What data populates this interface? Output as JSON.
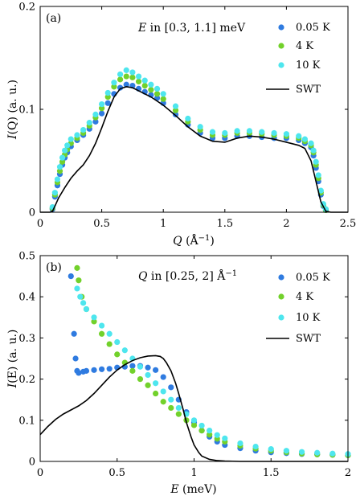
{
  "colors": {
    "s005": "#2f7be0",
    "s4": "#72d12b",
    "s10": "#4ee6ee",
    "swt": "#000000"
  },
  "chart_data": [
    {
      "type": "scatter",
      "panel_label": "(a)",
      "annotation": {
        "var": "E",
        "text": " in [0.3, 1.1] meV"
      },
      "xlabel": {
        "var": "Q",
        "unit": "(Å",
        "sup": "−1",
        "close": ")"
      },
      "ylabel": {
        "var": "I",
        "arg": "(Q)",
        "unit": " (a. u.)"
      },
      "xlim": [
        0,
        2.5
      ],
      "ylim": [
        0,
        0.2
      ],
      "xticks": [
        "0",
        "0.5",
        "1",
        "1.5",
        "2",
        "2.5"
      ],
      "xtick_values": [
        0,
        0.5,
        1,
        1.5,
        2,
        2.5
      ],
      "yticks": [
        "0",
        "0.1",
        "0.2"
      ],
      "ytick_values": [
        0,
        0.1,
        0.2
      ],
      "legend_position": "top-right",
      "series": [
        {
          "name": "0.05 K",
          "kind": "points",
          "color_key": "s005",
          "x": [
            0.1,
            0.12,
            0.14,
            0.16,
            0.18,
            0.2,
            0.22,
            0.25,
            0.3,
            0.35,
            0.4,
            0.45,
            0.5,
            0.55,
            0.6,
            0.65,
            0.7,
            0.75,
            0.8,
            0.85,
            0.9,
            0.95,
            1.0,
            1.1,
            1.2,
            1.3,
            1.4,
            1.5,
            1.6,
            1.7,
            1.8,
            1.9,
            2.0,
            2.1,
            2.15,
            2.2,
            2.22,
            2.24,
            2.26,
            2.28,
            2.3,
            2.32
          ],
          "y": [
            0.003,
            0.015,
            0.026,
            0.037,
            0.046,
            0.053,
            0.058,
            0.064,
            0.07,
            0.075,
            0.081,
            0.088,
            0.096,
            0.106,
            0.115,
            0.121,
            0.124,
            0.123,
            0.12,
            0.117,
            0.114,
            0.111,
            0.106,
            0.095,
            0.085,
            0.077,
            0.072,
            0.072,
            0.074,
            0.074,
            0.073,
            0.072,
            0.072,
            0.07,
            0.067,
            0.063,
            0.055,
            0.043,
            0.03,
            0.017,
            0.006,
            0.002
          ]
        },
        {
          "name": "4 K",
          "kind": "points",
          "color_key": "s4",
          "x": [
            0.1,
            0.12,
            0.14,
            0.16,
            0.18,
            0.2,
            0.22,
            0.25,
            0.3,
            0.35,
            0.4,
            0.45,
            0.5,
            0.55,
            0.6,
            0.65,
            0.7,
            0.75,
            0.8,
            0.85,
            0.9,
            0.95,
            1.0,
            1.1,
            1.2,
            1.3,
            1.4,
            1.5,
            1.6,
            1.7,
            1.8,
            1.9,
            2.0,
            2.1,
            2.15,
            2.2,
            2.22,
            2.24,
            2.26,
            2.28,
            2.3,
            2.32
          ],
          "y": [
            0.004,
            0.017,
            0.029,
            0.04,
            0.049,
            0.056,
            0.061,
            0.067,
            0.072,
            0.077,
            0.084,
            0.092,
            0.101,
            0.112,
            0.122,
            0.129,
            0.132,
            0.131,
            0.127,
            0.123,
            0.119,
            0.115,
            0.11,
            0.099,
            0.088,
            0.08,
            0.075,
            0.075,
            0.077,
            0.077,
            0.076,
            0.075,
            0.074,
            0.072,
            0.069,
            0.065,
            0.058,
            0.046,
            0.033,
            0.019,
            0.007,
            0.002
          ]
        },
        {
          "name": "10 K",
          "kind": "points",
          "color_key": "s10",
          "x": [
            0.1,
            0.12,
            0.14,
            0.16,
            0.18,
            0.2,
            0.22,
            0.25,
            0.3,
            0.35,
            0.4,
            0.45,
            0.5,
            0.55,
            0.6,
            0.65,
            0.7,
            0.75,
            0.8,
            0.85,
            0.9,
            0.95,
            1.0,
            1.1,
            1.2,
            1.3,
            1.4,
            1.5,
            1.6,
            1.7,
            1.8,
            1.9,
            2.0,
            2.1,
            2.15,
            2.2,
            2.22,
            2.24,
            2.26,
            2.28,
            2.3,
            2.32
          ],
          "y": [
            0.005,
            0.019,
            0.032,
            0.044,
            0.053,
            0.06,
            0.065,
            0.071,
            0.075,
            0.08,
            0.087,
            0.095,
            0.105,
            0.116,
            0.126,
            0.134,
            0.138,
            0.136,
            0.132,
            0.128,
            0.124,
            0.12,
            0.115,
            0.103,
            0.091,
            0.083,
            0.078,
            0.077,
            0.079,
            0.079,
            0.078,
            0.077,
            0.076,
            0.074,
            0.071,
            0.067,
            0.06,
            0.049,
            0.036,
            0.021,
            0.008,
            0.003
          ]
        },
        {
          "name": "SWT",
          "kind": "line",
          "color_key": "swt",
          "x": [
            0,
            0.08,
            0.1,
            0.12,
            0.15,
            0.2,
            0.25,
            0.3,
            0.35,
            0.4,
            0.45,
            0.5,
            0.55,
            0.6,
            0.65,
            0.7,
            0.75,
            0.8,
            0.85,
            0.9,
            0.95,
            1.0,
            1.1,
            1.2,
            1.3,
            1.4,
            1.5,
            1.6,
            1.7,
            1.8,
            1.9,
            2.0,
            2.1,
            2.15,
            2.2,
            2.24,
            2.28,
            2.32,
            2.36,
            2.5
          ],
          "y": [
            0,
            0,
            0.001,
            0.006,
            0.014,
            0.024,
            0.033,
            0.04,
            0.046,
            0.055,
            0.067,
            0.082,
            0.098,
            0.112,
            0.12,
            0.122,
            0.121,
            0.118,
            0.115,
            0.112,
            0.108,
            0.104,
            0.094,
            0.083,
            0.074,
            0.069,
            0.068,
            0.072,
            0.074,
            0.073,
            0.071,
            0.068,
            0.065,
            0.062,
            0.05,
            0.03,
            0.01,
            0.001,
            0,
            0
          ]
        }
      ]
    },
    {
      "type": "scatter",
      "panel_label": "(b)",
      "annotation": {
        "var": "Q",
        "text": " in [0.25, 2] Å",
        "sup": "−1"
      },
      "xlabel": {
        "var": "E",
        "unit": " (meV)"
      },
      "ylabel": {
        "var": "I",
        "arg": "(E)",
        "unit": " (a. u.)"
      },
      "xlim": [
        0,
        2
      ],
      "ylim": [
        0,
        0.5
      ],
      "xticks": [
        "0",
        "0.5",
        "1",
        "1.5",
        "2"
      ],
      "xtick_values": [
        0,
        0.5,
        1,
        1.5,
        2
      ],
      "yticks": [
        "0",
        "0.1",
        "0.2",
        "0.3",
        "0.4",
        "0.5"
      ],
      "ytick_values": [
        0,
        0.1,
        0.2,
        0.3,
        0.4,
        0.5
      ],
      "legend_position": "top-right",
      "series": [
        {
          "name": "0.05 K",
          "kind": "points",
          "color_key": "s005",
          "x": [
            0.2,
            0.22,
            0.23,
            0.24,
            0.25,
            0.28,
            0.3,
            0.35,
            0.4,
            0.45,
            0.5,
            0.55,
            0.6,
            0.65,
            0.7,
            0.75,
            0.8,
            0.85,
            0.9,
            0.95,
            1.0,
            1.05,
            1.1,
            1.15,
            1.2,
            1.3,
            1.4,
            1.5,
            1.6,
            1.7,
            1.8,
            1.9,
            2.0
          ],
          "y": [
            0.45,
            0.31,
            0.25,
            0.22,
            0.215,
            0.218,
            0.22,
            0.222,
            0.224,
            0.225,
            0.228,
            0.23,
            0.232,
            0.232,
            0.228,
            0.222,
            0.205,
            0.18,
            0.15,
            0.12,
            0.095,
            0.075,
            0.06,
            0.048,
            0.04,
            0.032,
            0.026,
            0.022,
            0.02,
            0.018,
            0.017,
            0.016,
            0.015
          ]
        },
        {
          "name": "4 K",
          "kind": "points",
          "color_key": "s4",
          "x": [
            0.24,
            0.25,
            0.27,
            0.3,
            0.35,
            0.4,
            0.45,
            0.5,
            0.55,
            0.6,
            0.65,
            0.7,
            0.75,
            0.8,
            0.85,
            0.9,
            0.95,
            1.0,
            1.05,
            1.1,
            1.15,
            1.2,
            1.3,
            1.4,
            1.5,
            1.6,
            1.7,
            1.8,
            1.9,
            2.0
          ],
          "y": [
            0.47,
            0.44,
            0.4,
            0.37,
            0.34,
            0.31,
            0.285,
            0.26,
            0.24,
            0.22,
            0.2,
            0.185,
            0.165,
            0.145,
            0.13,
            0.115,
            0.1,
            0.088,
            0.075,
            0.065,
            0.055,
            0.048,
            0.038,
            0.031,
            0.026,
            0.022,
            0.019,
            0.017,
            0.016,
            0.015
          ]
        },
        {
          "name": "10 K",
          "kind": "points",
          "color_key": "s10",
          "x": [
            0.24,
            0.26,
            0.28,
            0.3,
            0.35,
            0.4,
            0.45,
            0.5,
            0.55,
            0.6,
            0.65,
            0.7,
            0.75,
            0.8,
            0.85,
            0.9,
            0.95,
            1.0,
            1.05,
            1.1,
            1.15,
            1.2,
            1.3,
            1.4,
            1.5,
            1.6,
            1.7,
            1.8,
            1.9,
            2.0
          ],
          "y": [
            0.42,
            0.4,
            0.385,
            0.37,
            0.35,
            0.33,
            0.31,
            0.29,
            0.27,
            0.25,
            0.23,
            0.21,
            0.19,
            0.17,
            0.15,
            0.13,
            0.115,
            0.1,
            0.087,
            0.075,
            0.064,
            0.056,
            0.044,
            0.036,
            0.03,
            0.026,
            0.023,
            0.021,
            0.019,
            0.018
          ]
        },
        {
          "name": "SWT",
          "kind": "line",
          "color_key": "swt",
          "x": [
            0,
            0.05,
            0.1,
            0.15,
            0.2,
            0.25,
            0.3,
            0.35,
            0.4,
            0.45,
            0.5,
            0.55,
            0.6,
            0.65,
            0.7,
            0.75,
            0.78,
            0.8,
            0.82,
            0.85,
            0.88,
            0.9,
            0.93,
            0.95,
            0.98,
            1.0,
            1.03,
            1.05,
            1.1,
            1.15,
            1.2,
            1.3,
            2.0
          ],
          "y": [
            0.065,
            0.085,
            0.102,
            0.115,
            0.125,
            0.135,
            0.148,
            0.165,
            0.185,
            0.205,
            0.222,
            0.235,
            0.245,
            0.252,
            0.256,
            0.257,
            0.255,
            0.25,
            0.24,
            0.22,
            0.19,
            0.165,
            0.125,
            0.095,
            0.06,
            0.04,
            0.022,
            0.013,
            0.005,
            0.002,
            0.001,
            0,
            0
          ]
        }
      ]
    }
  ]
}
